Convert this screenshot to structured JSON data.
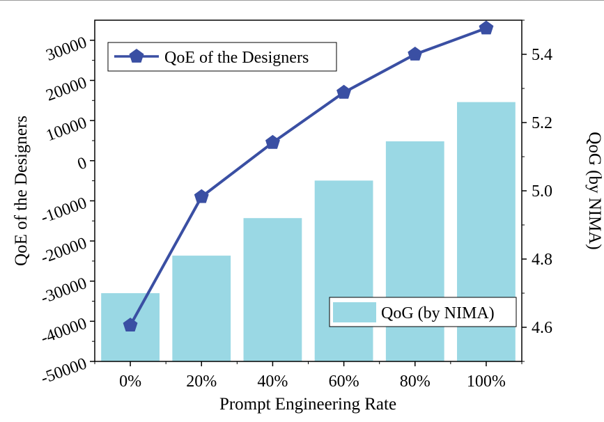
{
  "chart_data": {
    "type": "bar+line",
    "categories": [
      "0%",
      "20%",
      "40%",
      "60%",
      "80%",
      "100%"
    ],
    "xlabel": "Prompt Engineering Rate",
    "left_axis": {
      "label": "QoE of the Designers",
      "range": [
        -50000,
        35000
      ],
      "ticks": [
        -50000,
        -40000,
        -30000,
        -20000,
        -10000,
        0,
        10000,
        20000,
        30000
      ],
      "tick_labels": [
        "-50000",
        "-40000",
        "-30000",
        "-20000",
        "-10000",
        "0",
        "10000",
        "20000",
        "30000"
      ]
    },
    "right_axis": {
      "label": "QoG (by NIMA)",
      "range": [
        4.5,
        5.5
      ],
      "ticks": [
        4.6,
        4.8,
        5.0,
        5.2,
        5.4
      ],
      "tick_labels": [
        "4.6",
        "4.8",
        "5.0",
        "5.2",
        "5.4"
      ]
    },
    "series": [
      {
        "name": "QoE of the Designers",
        "type": "line",
        "axis": "left",
        "color": "#3a4fa3",
        "values": [
          -41000,
          -9000,
          4500,
          17000,
          26500,
          33000
        ]
      },
      {
        "name": "QoG (by NIMA)",
        "type": "bar",
        "axis": "right",
        "color": "#9ad8e4",
        "values": [
          4.7,
          4.81,
          4.92,
          5.03,
          5.145,
          5.26
        ]
      }
    ],
    "legend_placement": {
      "line": "top-left",
      "bar": "bottom-right"
    },
    "grid": false
  }
}
